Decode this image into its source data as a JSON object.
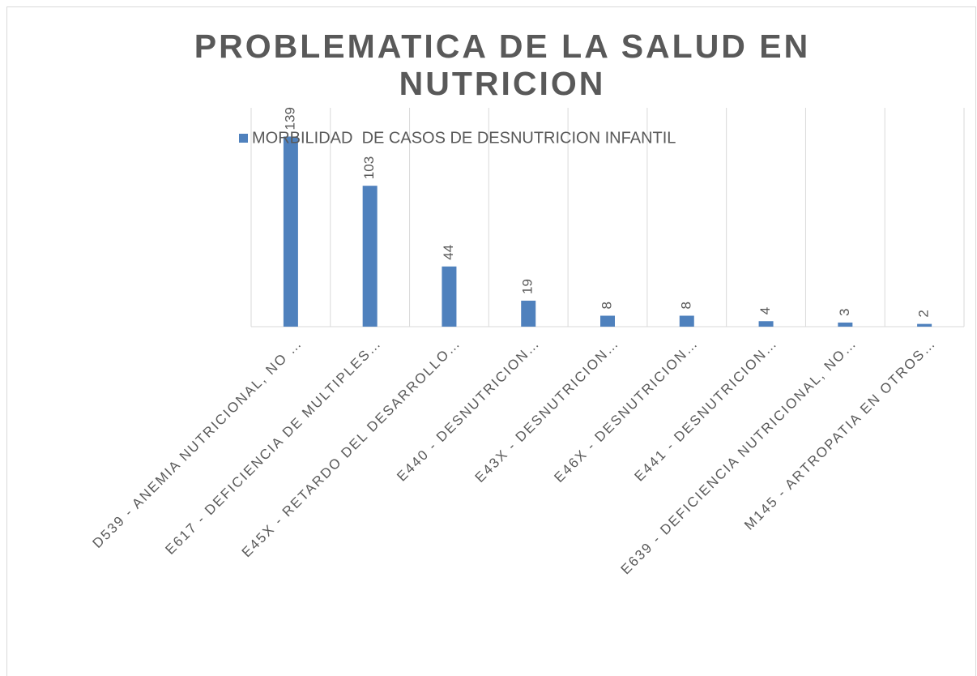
{
  "chart_data": {
    "type": "bar",
    "title": "PROBLEMATICA DE LA SALUD EN NUTRICION",
    "categories": [
      "D539 - ANEMIA NUTRICIONAL, NO …",
      "E617 - DEFICIENCIA DE MULTIPLES…",
      "E45X - RETARDO DEL DESARROLLO…",
      "E440 - DESNUTRICION…",
      "E43X - DESNUTRICION…",
      "E46X - DESNUTRICION…",
      "E441 - DESNUTRICION…",
      "E639 - DEFICIENCIA NUTRICIONAL, NO…",
      "M145 - ARTROPATIA EN OTROS…"
    ],
    "series": [
      {
        "name": "MORBILIDAD  DE CASOS DE DESNUTRICION INFANTIL",
        "color": "#4f81bd",
        "values": [
          139,
          103,
          44,
          19,
          8,
          8,
          4,
          3,
          2
        ]
      }
    ],
    "ylim": [
      0,
      160
    ]
  }
}
